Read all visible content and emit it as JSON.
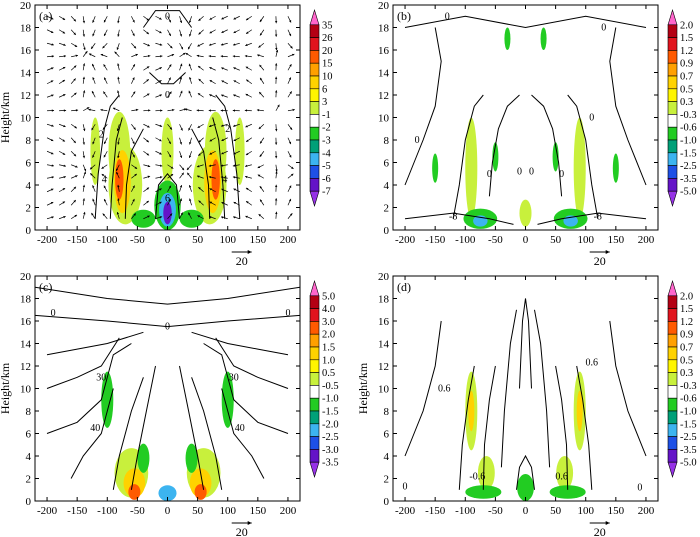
{
  "figure": {
    "panels_count": 4
  },
  "chart_data": [
    {
      "panel": "(a)",
      "type": "heatmap",
      "ylabel": "Height/km",
      "xlim": [
        -220,
        220
      ],
      "ylim": [
        0,
        20
      ],
      "xticks": [
        -200,
        -150,
        -100,
        -50,
        0,
        50,
        100,
        150,
        200
      ],
      "yticks": [
        0,
        2,
        4,
        6,
        8,
        10,
        12,
        14,
        16,
        18,
        20
      ],
      "colorbar_labels": [
        "35",
        "26",
        "20",
        "15",
        "10",
        "6",
        "3",
        "-1",
        "-2",
        "-3",
        "-4",
        "-5",
        "-6",
        "-7"
      ],
      "colorbar_colors": [
        "#ff66cc",
        "#b40014",
        "#e1141e",
        "#ff5a00",
        "#ffa000",
        "#ffd200",
        "#fff500",
        "#c8f03c",
        "#ffffff",
        "#22cc22",
        "#00a078",
        "#3cb4f0",
        "#1e50e6",
        "#6414c8",
        "#9632e6"
      ],
      "contour_labels": [
        "0",
        "0",
        "2",
        "2",
        "4",
        "4",
        "6"
      ],
      "vector_scale_label": "20",
      "has_vectors": true
    },
    {
      "panel": "(b)",
      "type": "heatmap",
      "ylabel": "",
      "xlim": [
        -220,
        220
      ],
      "ylim": [
        0,
        20
      ],
      "xticks": [
        -200,
        -150,
        -100,
        -50,
        0,
        50,
        100,
        150,
        200
      ],
      "yticks": [
        0,
        2,
        4,
        6,
        8,
        10,
        12,
        14,
        16,
        18,
        20
      ],
      "colorbar_labels": [
        "2.0",
        "1.5",
        "1.2",
        "0.9",
        "0.7",
        "0.5",
        "0.3",
        "-0.3",
        "-0.6",
        "-1.0",
        "-1.5",
        "-2.5",
        "-3.5",
        "-5.0"
      ],
      "colorbar_colors": [
        "#ff66cc",
        "#b40014",
        "#e1141e",
        "#ff5a00",
        "#ffa000",
        "#ffd200",
        "#fff500",
        "#c8f03c",
        "#ffffff",
        "#22cc22",
        "#00a078",
        "#3cb4f0",
        "#1e50e6",
        "#6414c8",
        "#9632e6"
      ],
      "contour_labels": [
        "0",
        "0",
        "0",
        "0",
        "0",
        "0",
        "0",
        "0",
        "-8",
        "-8"
      ],
      "vector_scale_label": "20",
      "has_vectors": false
    },
    {
      "panel": "(c)",
      "type": "heatmap",
      "ylabel": "Height/km",
      "xlim": [
        -220,
        220
      ],
      "ylim": [
        0,
        20
      ],
      "xticks": [
        -200,
        -150,
        -100,
        -50,
        0,
        50,
        100,
        150,
        200
      ],
      "yticks": [
        0,
        2,
        4,
        6,
        8,
        10,
        12,
        14,
        16,
        18,
        20
      ],
      "colorbar_labels": [
        "5.0",
        "4.0",
        "3.0",
        "2.0",
        "1.5",
        "1.0",
        "0.5",
        "-0.5",
        "-1.0",
        "-1.5",
        "-2.0",
        "-2.5",
        "-3.0",
        "-3.5"
      ],
      "colorbar_colors": [
        "#ff66cc",
        "#b40014",
        "#e1141e",
        "#ff5a00",
        "#ffa000",
        "#ffd200",
        "#fff500",
        "#c8f03c",
        "#ffffff",
        "#22cc22",
        "#00a078",
        "#3cb4f0",
        "#1e50e6",
        "#6414c8",
        "#9632e6"
      ],
      "contour_labels": [
        "0",
        "0",
        "0",
        "30",
        "30",
        "40",
        "40"
      ],
      "vector_scale_label": "20",
      "has_vectors": false
    },
    {
      "panel": "(d)",
      "type": "heatmap",
      "ylabel": "Height/km",
      "xlim": [
        -220,
        220
      ],
      "ylim": [
        0,
        20
      ],
      "xticks": [
        -200,
        -150,
        -100,
        -50,
        0,
        50,
        100,
        150,
        200
      ],
      "yticks": [
        0,
        2,
        4,
        6,
        8,
        10,
        12,
        14,
        16,
        18,
        20
      ],
      "colorbar_labels": [
        "2.0",
        "1.5",
        "1.2",
        "0.9",
        "0.7",
        "0.5",
        "0.3",
        "-0.3",
        "-0.6",
        "-1.0",
        "-1.5",
        "-2.5",
        "-3.5",
        "-5.0"
      ],
      "colorbar_colors": [
        "#ff66cc",
        "#b40014",
        "#e1141e",
        "#ff5a00",
        "#ffa000",
        "#ffd200",
        "#fff500",
        "#c8f03c",
        "#ffffff",
        "#22cc22",
        "#00a078",
        "#3cb4f0",
        "#1e50e6",
        "#6414c8",
        "#9632e6"
      ],
      "contour_labels": [
        "0.6",
        "0.6",
        "-0.6",
        "0.6",
        "0",
        "0"
      ],
      "vector_scale_label": "20",
      "has_vectors": false
    }
  ]
}
